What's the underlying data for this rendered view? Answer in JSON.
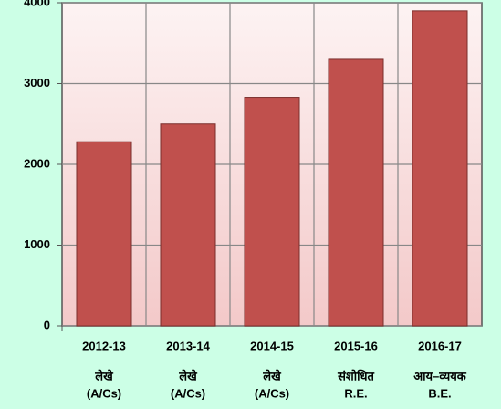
{
  "chart_data": {
    "type": "bar",
    "categories": [
      "2012-13",
      "2013-14",
      "2014-15",
      "2015-16",
      "2016-17"
    ],
    "sublabels": [
      [
        "लेखे",
        "(A/Cs)"
      ],
      [
        "लेखे",
        "(A/Cs)"
      ],
      [
        "लेखे",
        "(A/Cs)"
      ],
      [
        "संशोधित",
        "R.E."
      ],
      [
        "आय–व्ययक",
        "B.E."
      ]
    ],
    "values": [
      2280,
      2500,
      2830,
      3300,
      3900
    ],
    "color": "#c0504d",
    "ylim": [
      0,
      4000
    ],
    "yticks": [
      0,
      1000,
      2000,
      3000,
      4000
    ],
    "grid": true
  }
}
